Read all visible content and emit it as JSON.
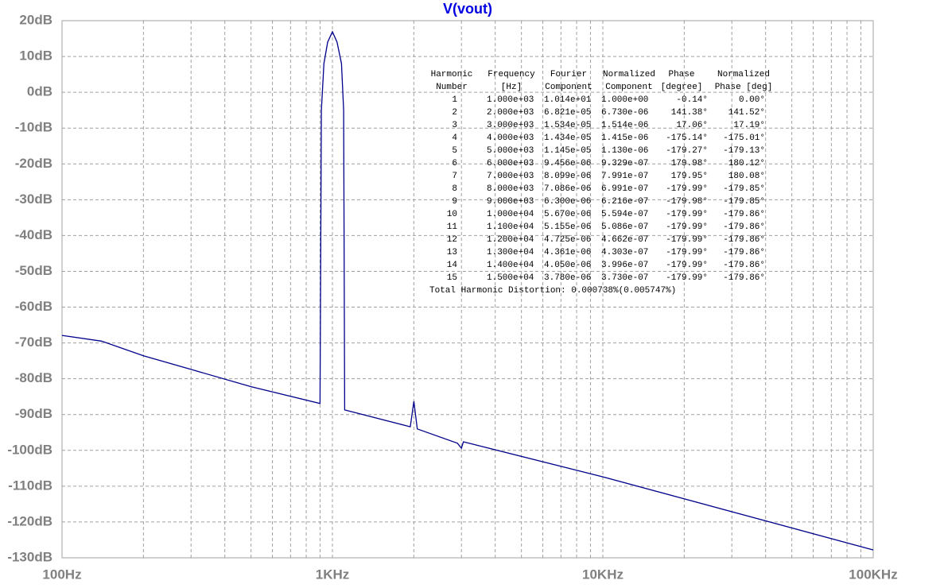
{
  "chart_data": {
    "type": "line",
    "title": "V(vout)",
    "color": "#00008b",
    "xlog": true,
    "grid": true,
    "x": [
      100,
      140,
      200,
      300,
      500,
      900,
      910,
      930,
      960,
      1000,
      1040,
      1080,
      1100,
      1110,
      1941,
      2000,
      2060,
      2900,
      3000,
      3050,
      10000,
      100000
    ],
    "values": [
      -67.9,
      -69.5,
      -73.6,
      -77.4,
      -82.2,
      -86.9,
      -5,
      8,
      14,
      16.9,
      14,
      8,
      -5,
      -88.7,
      -93.4,
      -86.3,
      -94.0,
      -98.0,
      -99.4,
      -97.6,
      -107.4,
      -127.8
    ],
    "xlim": [
      100,
      100000
    ],
    "xticks": [
      {
        "value": 100,
        "label": "100Hz"
      },
      {
        "value": 1000,
        "label": "1KHz"
      },
      {
        "value": 10000,
        "label": "10KHz"
      },
      {
        "value": 100000,
        "label": "100KHz"
      }
    ],
    "ylim": [
      -130,
      20
    ],
    "yticks": [
      {
        "value": 20,
        "label": "20dB"
      },
      {
        "value": 10,
        "label": "10dB"
      },
      {
        "value": 0,
        "label": "0dB"
      },
      {
        "value": -10,
        "label": "-10dB"
      },
      {
        "value": -20,
        "label": "-20dB"
      },
      {
        "value": -30,
        "label": "-30dB"
      },
      {
        "value": -40,
        "label": "-40dB"
      },
      {
        "value": -50,
        "label": "-50dB"
      },
      {
        "value": -60,
        "label": "-60dB"
      },
      {
        "value": -70,
        "label": "-70dB"
      },
      {
        "value": -80,
        "label": "-80dB"
      },
      {
        "value": -90,
        "label": "-90dB"
      },
      {
        "value": -100,
        "label": "-100dB"
      },
      {
        "value": -110,
        "label": "-110dB"
      },
      {
        "value": -120,
        "label": "-120dB"
      },
      {
        "value": -130,
        "label": "-130dB"
      }
    ],
    "annotation": {
      "header": [
        [
          "Harmonic",
          "Frequency",
          "Fourier",
          "Normalized",
          "Phase",
          "Normalized"
        ],
        [
          "Number",
          "[Hz]",
          "Component",
          "Component",
          "[degree]",
          "Phase [deg]"
        ]
      ],
      "rows": [
        [
          "1",
          "1.000e+03",
          "1.014e+01",
          "1.000e+00",
          "-0.14°",
          "0.00°"
        ],
        [
          "2",
          "2.000e+03",
          "6.821e-05",
          "6.730e-06",
          "141.38°",
          "141.52°"
        ],
        [
          "3",
          "3.000e+03",
          "1.534e-05",
          "1.514e-06",
          "17.06°",
          "17.19°"
        ],
        [
          "4",
          "4.000e+03",
          "1.434e-05",
          "1.415e-06",
          "-175.14°",
          "-175.01°"
        ],
        [
          "5",
          "5.000e+03",
          "1.145e-05",
          "1.130e-06",
          "-179.27°",
          "-179.13°"
        ],
        [
          "6",
          "6.000e+03",
          "9.456e-06",
          "9.329e-07",
          "179.98°",
          "180.12°"
        ],
        [
          "7",
          "7.000e+03",
          "8.099e-06",
          "7.991e-07",
          "179.95°",
          "180.08°"
        ],
        [
          "8",
          "8.000e+03",
          "7.086e-06",
          "6.991e-07",
          "-179.99°",
          "-179.85°"
        ],
        [
          "9",
          "9.000e+03",
          "6.300e-06",
          "6.216e-07",
          "-179.98°",
          "-179.85°"
        ],
        [
          "10",
          "1.000e+04",
          "5.670e-06",
          "5.594e-07",
          "-179.99°",
          "-179.86°"
        ],
        [
          "11",
          "1.100e+04",
          "5.155e-06",
          "5.086e-07",
          "-179.99°",
          "-179.86°"
        ],
        [
          "12",
          "1.200e+04",
          "4.725e-06",
          "4.662e-07",
          "-179.99°",
          "-179.86°"
        ],
        [
          "13",
          "1.300e+04",
          "4.361e-06",
          "4.303e-07",
          "-179.99°",
          "-179.86°"
        ],
        [
          "14",
          "1.400e+04",
          "4.050e-06",
          "3.996e-07",
          "-179.99°",
          "-179.86°"
        ],
        [
          "15",
          "1.500e+04",
          "3.780e-06",
          "3.730e-07",
          "-179.99°",
          "-179.86°"
        ]
      ],
      "footer": "Total Harmonic Distortion: 0.000738%(0.005747%)"
    }
  }
}
